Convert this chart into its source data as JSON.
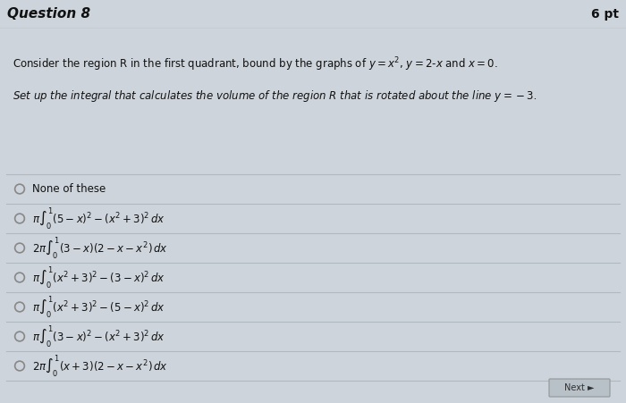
{
  "title": "Question 8",
  "points": "6 pt",
  "header_bg": "#c8cdd6",
  "header_line_color": "#aab0b8",
  "content_bg": "#cdd4dc",
  "row_separator_color": "#b0b8c0",
  "row_bg": "#cdd4dc",
  "paragraph1": "Consider the region R in the first quadrant, bound by the graphs of y = x², y = 2-x and x = 0.",
  "paragraph2": "Set up the integral that calculates the volume of the region R that is rotated about the line y = -3.",
  "option_texts": [
    "None of these",
    "\\pi \\int_0^1 (5-x)^2 - (x^2+3)^2\\, dx",
    "2\\pi \\int_0^1 (3-x)(2-x-x^2)\\, dx",
    "\\pi \\int_0^1 (x^2+3)^2 - (3-x)^2\\, dx",
    "\\pi \\int_0^1 (x^2+3)^2 - (5-x)^2\\, dx",
    "\\pi \\int_0^1 (3-x)^2 - (x^2+3)^2\\, dx",
    "2\\pi \\int_0^1 (x+3)(2-x-x^2)\\, dx"
  ],
  "radio_color": "#888888",
  "text_color": "#111111",
  "next_btn_color": "#b8c0c8",
  "next_btn_edge": "#909898"
}
